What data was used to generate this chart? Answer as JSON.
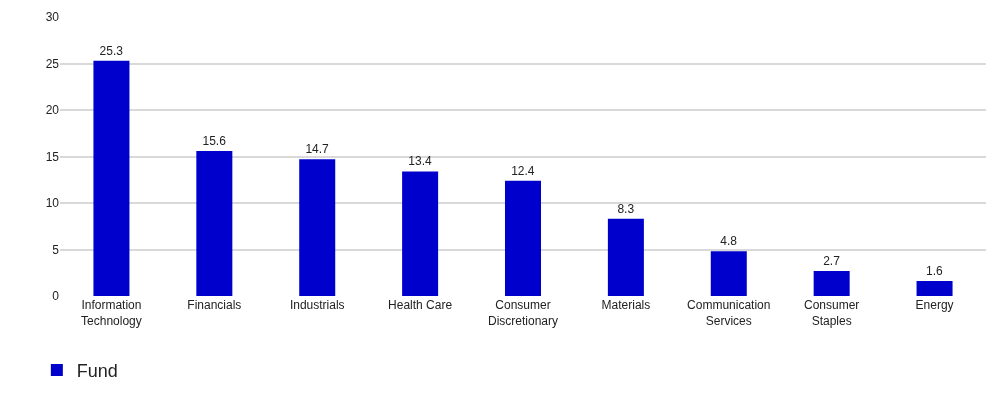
{
  "chart_data": {
    "type": "bar",
    "categories": [
      "Information Technology",
      "Financials",
      "Industrials",
      "Health Care",
      "Consumer Discretionary",
      "Materials",
      "Communication Services",
      "Consumer Staples",
      "Energy"
    ],
    "series": [
      {
        "name": "Fund",
        "color": "#0000cc",
        "values": [
          25.3,
          15.6,
          14.7,
          13.4,
          12.4,
          8.3,
          4.8,
          2.7,
          1.6
        ]
      }
    ],
    "ylim": [
      0,
      30
    ],
    "yticks": [
      0,
      5,
      10,
      15,
      20,
      25,
      30
    ],
    "grid": "y",
    "legend": "bottom left",
    "data_labels": true
  }
}
